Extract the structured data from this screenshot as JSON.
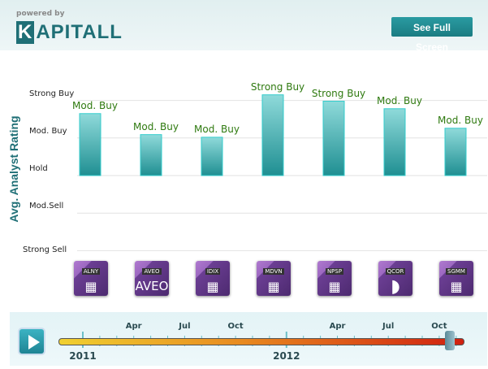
{
  "header": {
    "powered_by": "powered by",
    "logo": "KAPITALL",
    "full_screen_label": "See Full Screen"
  },
  "chart_data": {
    "type": "bar",
    "ylabel": "Avg. Analyst Rating",
    "y_ticks": [
      {
        "value": 2,
        "label": "Strong Buy"
      },
      {
        "value": 1,
        "label": "Mod. Buy"
      },
      {
        "value": 0,
        "label": "Hold"
      },
      {
        "value": -1,
        "label": "Mod.Sell"
      },
      {
        "value": -2,
        "label": "Strong Sell"
      }
    ],
    "ylim": [
      -2,
      2
    ],
    "grid": true,
    "categories": [
      "ALNY",
      "AVEO",
      "IDIX",
      "MDVN",
      "NPSP",
      "QCOR",
      "SGMM"
    ],
    "values": [
      1.65,
      1.09,
      1.02,
      2.15,
      1.98,
      1.78,
      1.26
    ],
    "data_labels": [
      "Mod. Buy",
      "Mod. Buy",
      "Mod. Buy",
      "Strong Buy",
      "Strong Buy",
      "Mod. Buy",
      "Mod. Buy"
    ],
    "bar_color": "#2aa5a8"
  },
  "icons": [
    {
      "ticker": "ALNY",
      "glyph": "building-icon"
    },
    {
      "ticker": "AVEO",
      "glyph": "AVEO"
    },
    {
      "ticker": "IDIX",
      "glyph": "building-icon"
    },
    {
      "ticker": "MDVN",
      "glyph": "building-icon"
    },
    {
      "ticker": "NPSP",
      "glyph": "building-icon"
    },
    {
      "ticker": "QCOR",
      "glyph": "qcor-logo-icon"
    },
    {
      "ticker": "SGMM",
      "glyph": "building-icon"
    }
  ],
  "timeline": {
    "months": [
      "Apr",
      "Jul",
      "Oct",
      "Apr",
      "Jul",
      "Oct"
    ],
    "years": [
      "2011",
      "2012"
    ],
    "position_fraction": 0.98
  }
}
